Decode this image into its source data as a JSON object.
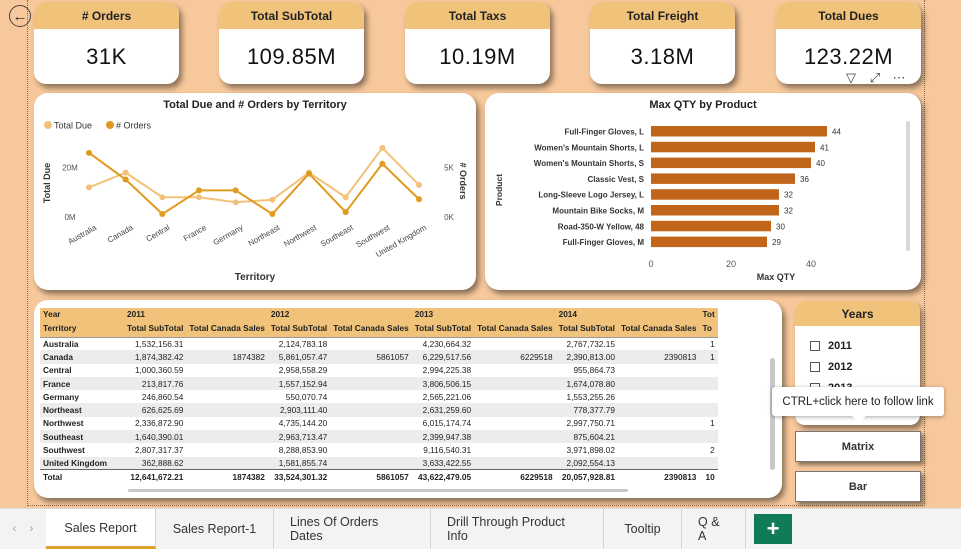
{
  "kpis": [
    {
      "title": "# Orders",
      "value": "31K"
    },
    {
      "title": "Total SubTotal",
      "value": "109.85M"
    },
    {
      "title": "Total Taxs",
      "value": "10.19M"
    },
    {
      "title": "Total Freight",
      "value": "3.18M"
    },
    {
      "title": "Total Dues",
      "value": "123.22M"
    }
  ],
  "visual_toolbar": {
    "filter_icon": "▽",
    "focus_icon": "⤢",
    "more_icon": "⋯"
  },
  "back_icon": "←",
  "colors": {
    "total_due": "#f2c27a",
    "orders": "#e09a1e",
    "bar": "#c0651a",
    "header": "#f0c27a",
    "background": "#f7c89b",
    "tab_add": "#117a56"
  },
  "chart_data": [
    {
      "type": "line",
      "title": "Total Due and # Orders by Territory",
      "xlabel": "Territory",
      "ylabel": "Total Due",
      "y2label": "# Orders",
      "legend": [
        "Total Due",
        "# Orders"
      ],
      "legend_position": "top-left",
      "categories": [
        "Australia",
        "Canada",
        "Central",
        "France",
        "Germany",
        "Northeast",
        "Northwest",
        "Southeast",
        "Southwest",
        "United Kingdom"
      ],
      "y_ticks": [
        "0M",
        "20M"
      ],
      "y2_ticks": [
        "0K",
        "5K"
      ],
      "ylim": [
        0,
        30000000
      ],
      "y2lim": [
        0,
        7500
      ],
      "series": [
        {
          "name": "Total Due",
          "axis": "left",
          "values": [
            12000000,
            18000000,
            8000000,
            8000000,
            6000000,
            7000000,
            18000000,
            8000000,
            28000000,
            13000000
          ]
        },
        {
          "name": "# Orders",
          "axis": "right",
          "values": [
            6500,
            3800,
            300,
            2700,
            2700,
            300,
            4400,
            500,
            5400,
            1800
          ]
        }
      ]
    },
    {
      "type": "bar",
      "orientation": "horizontal",
      "title": "Max QTY by Product",
      "xlabel": "Max QTY",
      "ylabel": "Product",
      "categories": [
        "Full-Finger Gloves, L",
        "Women's Mountain Shorts, L",
        "Women's Mountain Shorts, S",
        "Classic Vest, S",
        "Long-Sleeve Logo Jersey, L",
        "Mountain Bike Socks, M",
        "Road-350-W Yellow, 48",
        "Full-Finger Gloves, M"
      ],
      "values": [
        44,
        41,
        40,
        36,
        32,
        32,
        30,
        29
      ],
      "x_ticks": [
        "0",
        "20",
        "40"
      ],
      "xlim": [
        0,
        50
      ]
    }
  ],
  "matrix": {
    "row_header": "Year",
    "row_label": "Territory",
    "years": [
      "2011",
      "2012",
      "2013",
      "2014",
      "Tot"
    ],
    "col_headers": [
      "Total SubTotal",
      "Total Canada Sales",
      "Total SubTotal",
      "Total Canada Sales",
      "Total SubTotal",
      "Total Canada Sales",
      "Total SubTotal",
      "Total Canada Sales",
      "To"
    ],
    "rows": [
      {
        "territory": "Australia",
        "cells": [
          "1,532,156.31",
          "",
          "2,124,783.18",
          "",
          "4,230,664.32",
          "",
          "2,767,732.15",
          "",
          "1"
        ]
      },
      {
        "territory": "Canada",
        "cells": [
          "1,874,382.42",
          "1874382",
          "5,861,057.47",
          "5861057",
          "6,229,517.56",
          "6229518",
          "2,390,813.00",
          "2390813",
          "1"
        ]
      },
      {
        "territory": "Central",
        "cells": [
          "1,000,360.59",
          "",
          "2,958,558.29",
          "",
          "2,994,225.38",
          "",
          "955,864.73",
          "",
          ""
        ]
      },
      {
        "territory": "France",
        "cells": [
          "213,817.76",
          "",
          "1,557,152.94",
          "",
          "3,806,506.15",
          "",
          "1,674,078.80",
          "",
          ""
        ]
      },
      {
        "territory": "Germany",
        "cells": [
          "246,860.54",
          "",
          "550,070.74",
          "",
          "2,565,221.06",
          "",
          "1,553,255.26",
          "",
          ""
        ]
      },
      {
        "territory": "Northeast",
        "cells": [
          "626,625.69",
          "",
          "2,903,111.40",
          "",
          "2,631,259.60",
          "",
          "778,377.79",
          "",
          ""
        ]
      },
      {
        "territory": "Northwest",
        "cells": [
          "2,336,872.90",
          "",
          "4,735,144.20",
          "",
          "6,015,174.74",
          "",
          "2,997,750.71",
          "",
          "1"
        ]
      },
      {
        "territory": "Southeast",
        "cells": [
          "1,640,390.01",
          "",
          "2,963,713.47",
          "",
          "2,399,947.38",
          "",
          "875,604.21",
          "",
          ""
        ]
      },
      {
        "territory": "Southwest",
        "cells": [
          "2,807,317.37",
          "",
          "8,288,853.90",
          "",
          "9,116,540.31",
          "",
          "3,971,898.02",
          "",
          "2"
        ]
      },
      {
        "territory": "United Kingdom",
        "cells": [
          "362,888.62",
          "",
          "1,581,855.74",
          "",
          "3,633,422.55",
          "",
          "2,092,554.13",
          "",
          ""
        ]
      }
    ],
    "total": {
      "territory": "Total",
      "cells": [
        "12,641,672.21",
        "1874382",
        "33,524,301.32",
        "5861057",
        "43,622,479.05",
        "6229518",
        "20,057,928.81",
        "2390813",
        "10"
      ]
    }
  },
  "slicer": {
    "title": "Years",
    "items": [
      "2011",
      "2012",
      "2013"
    ]
  },
  "tooltip": "CTRL+click here to follow link",
  "nav_buttons": [
    "Matrix",
    "Bar"
  ],
  "tabs": {
    "prev": "‹",
    "next": "›",
    "items": [
      "Sales Report",
      "Sales Report-1",
      "Lines Of Orders Dates",
      "Drill Through Product Info",
      "Tooltip",
      "Q & A"
    ],
    "active_index": 0,
    "add": "+"
  }
}
